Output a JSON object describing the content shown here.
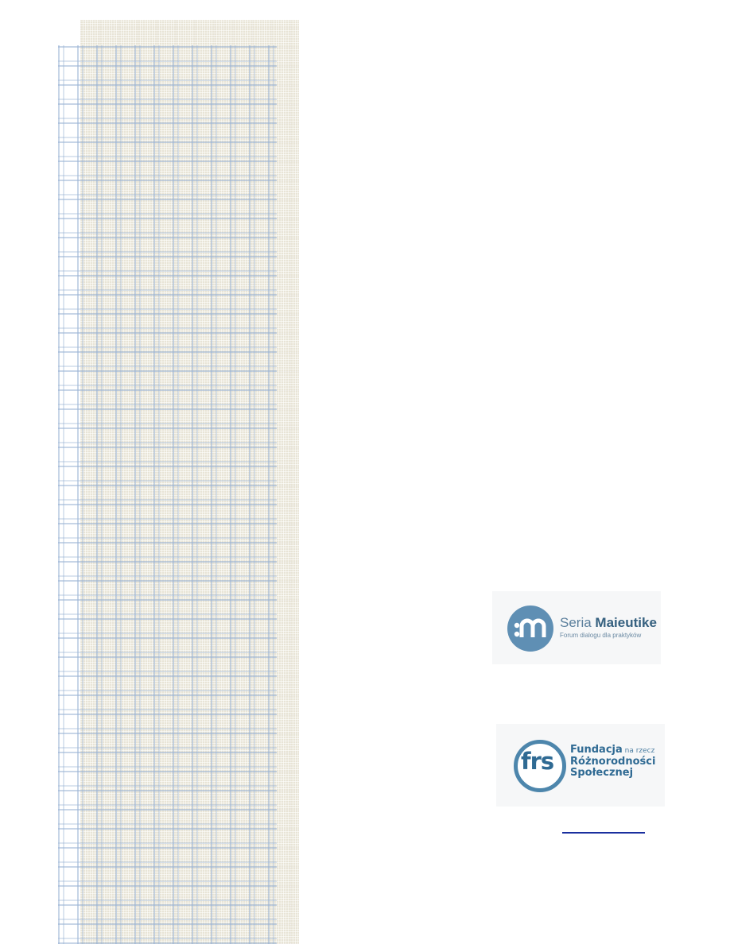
{
  "maieutike": {
    "title_light": "Seria ",
    "title_bold": "Maieutike",
    "subtitle": "Forum dialogu dla praktyków",
    "icon": "m-logo-icon",
    "color": "#5f8fb4"
  },
  "frs": {
    "letters": "frs",
    "line1_bold": "Fundacja",
    "line1_small": " na rzecz",
    "line2": "Różnorodności",
    "line3": "Społecznej",
    "color": "#2f6a93"
  },
  "colors": {
    "pattern_beige": "#e8e4d6",
    "pattern_blue": "#94afd2",
    "link": "#1a2f9e"
  }
}
